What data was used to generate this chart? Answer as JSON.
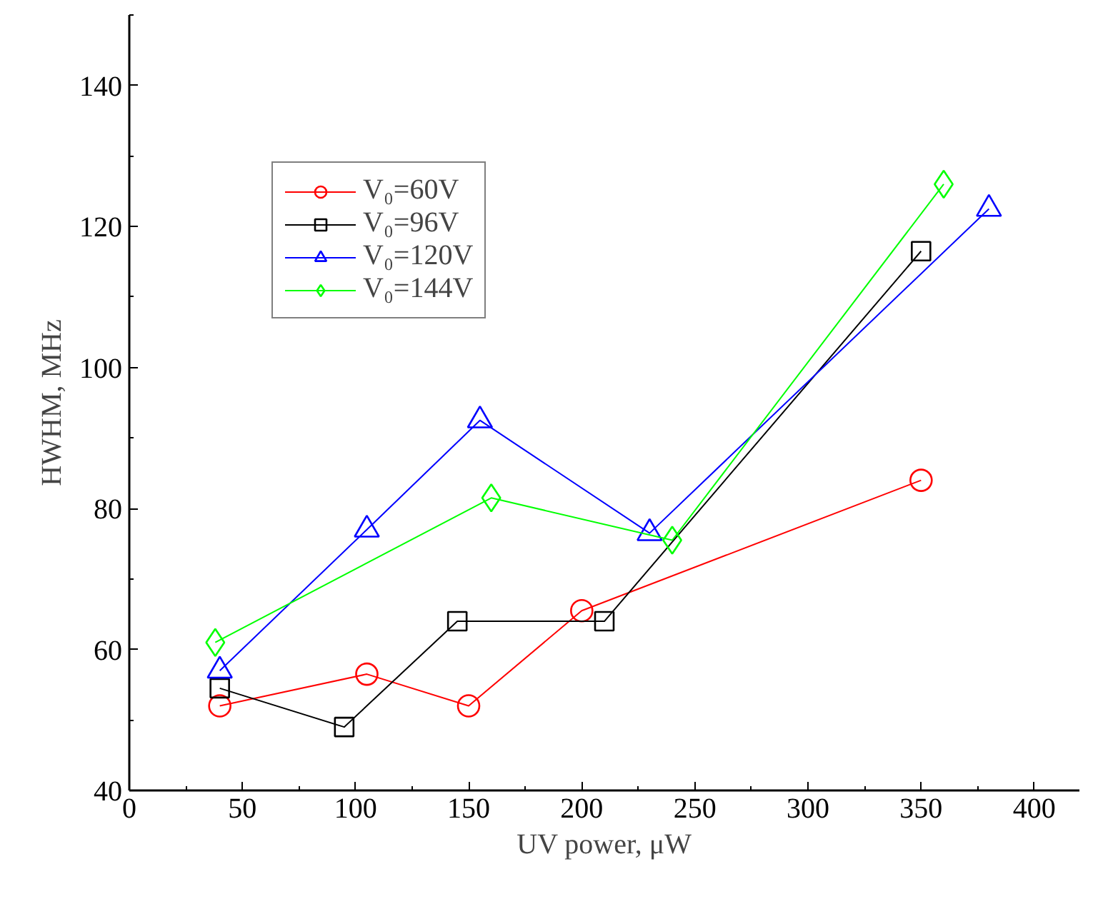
{
  "chart_data": {
    "type": "line",
    "xlabel": "UV power, μW",
    "ylabel": "HWHM, MHz",
    "xlim": [
      0,
      420
    ],
    "ylim": [
      40,
      150
    ],
    "xticks": [
      0,
      50,
      100,
      150,
      200,
      250,
      300,
      350,
      400
    ],
    "yticks": [
      40,
      60,
      80,
      100,
      120,
      140
    ],
    "grid": false,
    "legend": "top left",
    "series": [
      {
        "name": "V₀=60V",
        "color": "#ff0000",
        "marker": "circle",
        "x": [
          40,
          105,
          150,
          200,
          350
        ],
        "values": [
          52,
          56.5,
          52,
          65.5,
          84
        ]
      },
      {
        "name": "V₀=96V",
        "color": "#000000",
        "marker": "square",
        "x": [
          40,
          95,
          145,
          210,
          350
        ],
        "values": [
          54.5,
          49,
          64,
          64,
          116.5
        ]
      },
      {
        "name": "V₀=120V",
        "color": "#0000ff",
        "marker": "triangle",
        "x": [
          40,
          105,
          155,
          230,
          380
        ],
        "values": [
          57,
          77,
          92.5,
          76.5,
          122.5
        ]
      },
      {
        "name": "V₀=144V",
        "color": "#00ff00",
        "marker": "diamond",
        "x": [
          38,
          160,
          240,
          360
        ],
        "values": [
          61,
          81.5,
          75.5,
          126
        ]
      }
    ]
  }
}
